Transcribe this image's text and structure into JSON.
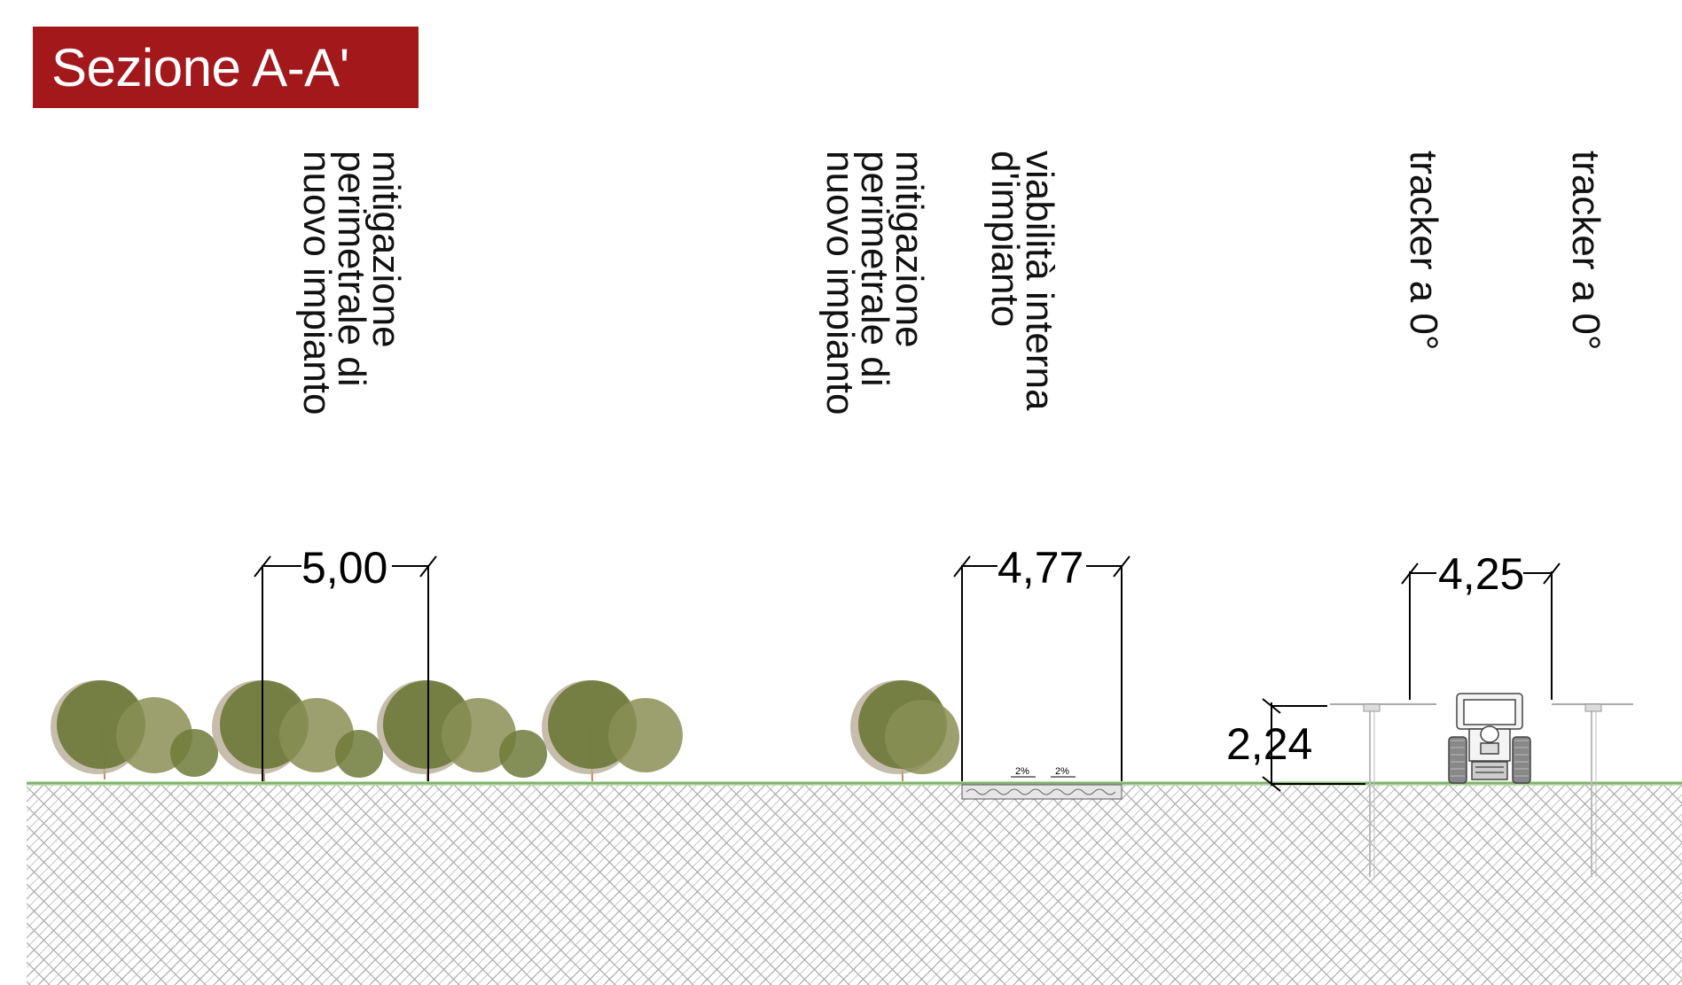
{
  "title": "Sezione A-A'",
  "labels": {
    "mitigation_1": [
      "mitigazione",
      "perimetrale di",
      "nuovo impianto"
    ],
    "mitigation_2": [
      "mitigazione",
      "perimetrale di",
      "nuovo impianto"
    ],
    "internal_road": [
      "viabilità interna",
      "d'impianto"
    ],
    "tracker_1": [
      "tracker a 0°"
    ],
    "tracker_2": [
      "tracker a 0°"
    ]
  },
  "dimensions": {
    "mitigation_width": "5,00",
    "road_width": "4,77",
    "tracker_spacing": "4,25",
    "tracker_height": "2,24",
    "slope_left": "2%",
    "slope_right": "2%"
  },
  "colors": {
    "title_bg": "#a3181b",
    "title_text": "#ffffff",
    "tree_front": "#6e7a3a",
    "tree_back": "#b8ad99",
    "grass": "#7fb36b",
    "ground_hatch": "#9a9a9a"
  }
}
